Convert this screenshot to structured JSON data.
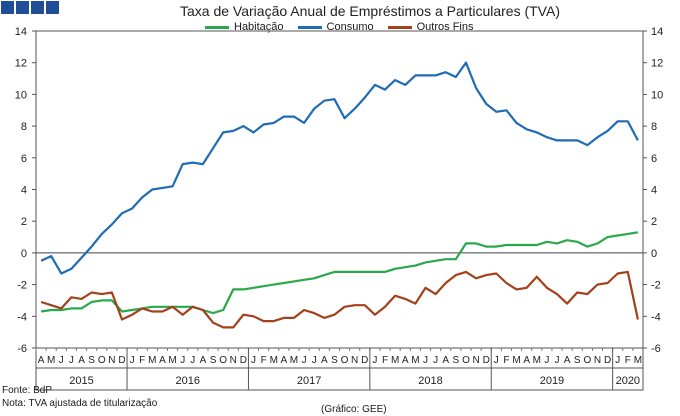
{
  "header": {
    "title": "Taxa de Variação Anual de Empréstimos a Particulares (TVA)",
    "deco_color": "#1f4e96"
  },
  "footer": {
    "source": "Fonte: BdP",
    "note": "Nota: TVA ajustada de titularização",
    "credit": "(Gráfico: GEE)"
  },
  "chart_data": {
    "type": "line",
    "title": "Taxa de Variação Anual de Empréstimos a Particulares (TVA)",
    "ylim": [
      -6,
      14
    ],
    "yticks": [
      -6,
      -4,
      -2,
      0,
      2,
      4,
      6,
      8,
      10,
      12,
      14
    ],
    "grid": false,
    "legend_position": "top",
    "months": [
      "A",
      "M",
      "J",
      "J",
      "A",
      "S",
      "O",
      "N",
      "D",
      "J",
      "F",
      "M",
      "A",
      "M",
      "J",
      "J",
      "A",
      "S",
      "O",
      "N",
      "D",
      "J",
      "F",
      "M",
      "A",
      "M",
      "J",
      "J",
      "A",
      "S",
      "O",
      "N",
      "D",
      "J",
      "F",
      "M",
      "A",
      "M",
      "J",
      "J",
      "A",
      "S",
      "O",
      "N",
      "D",
      "J",
      "F",
      "M",
      "A",
      "M",
      "J",
      "J",
      "A",
      "S",
      "O",
      "N",
      "D",
      "J",
      "F",
      "M"
    ],
    "years": [
      {
        "label": "2015",
        "start": 0,
        "count": 9
      },
      {
        "label": "2016",
        "start": 9,
        "count": 12
      },
      {
        "label": "2017",
        "start": 21,
        "count": 12
      },
      {
        "label": "2018",
        "start": 33,
        "count": 12
      },
      {
        "label": "2019",
        "start": 45,
        "count": 12
      },
      {
        "label": "2020",
        "start": 57,
        "count": 3
      }
    ],
    "series": [
      {
        "name": "Habitação",
        "color": "#2aa84a",
        "values": [
          -3.7,
          -3.6,
          -3.6,
          -3.5,
          -3.5,
          -3.1,
          -3.0,
          -3.0,
          -3.7,
          -3.6,
          -3.5,
          -3.4,
          -3.4,
          -3.4,
          -3.4,
          -3.4,
          -3.6,
          -3.8,
          -3.6,
          -2.3,
          -2.3,
          -2.2,
          -2.1,
          -2.0,
          -1.9,
          -1.8,
          -1.7,
          -1.6,
          -1.4,
          -1.2,
          -1.2,
          -1.2,
          -1.2,
          -1.2,
          -1.2,
          -1.0,
          -0.9,
          -0.8,
          -0.6,
          -0.5,
          -0.4,
          -0.4,
          0.6,
          0.6,
          0.4,
          0.4,
          0.5,
          0.5,
          0.5,
          0.5,
          0.7,
          0.6,
          0.8,
          0.7,
          0.4,
          0.6,
          1.0,
          1.1,
          1.2,
          1.3
        ]
      },
      {
        "name": "Consumo",
        "color": "#1f6bb5",
        "values": [
          -0.5,
          -0.2,
          -1.3,
          -1.0,
          -0.3,
          0.4,
          1.2,
          1.8,
          2.5,
          2.8,
          3.5,
          4.0,
          4.1,
          4.2,
          5.6,
          5.7,
          5.6,
          6.6,
          7.6,
          7.7,
          8.0,
          7.6,
          8.1,
          8.2,
          8.6,
          8.6,
          8.2,
          9.1,
          9.6,
          9.7,
          8.5,
          9.1,
          9.8,
          10.6,
          10.3,
          10.9,
          10.6,
          11.2,
          11.2,
          11.2,
          11.4,
          11.1,
          12.0,
          10.4,
          9.4,
          8.9,
          9.0,
          8.2,
          7.8,
          7.6,
          7.3,
          7.1,
          7.1,
          7.1,
          6.8,
          7.3,
          7.7,
          8.3,
          8.3,
          7.1
        ]
      },
      {
        "name": "Outros Fins",
        "color": "#a2411c",
        "values": [
          -3.1,
          -3.3,
          -3.5,
          -2.8,
          -2.9,
          -2.5,
          -2.6,
          -2.5,
          -4.2,
          -3.9,
          -3.5,
          -3.7,
          -3.7,
          -3.4,
          -3.9,
          -3.4,
          -3.6,
          -4.4,
          -4.7,
          -4.7,
          -3.9,
          -4.0,
          -4.3,
          -4.3,
          -4.1,
          -4.1,
          -3.6,
          -3.8,
          -4.1,
          -3.9,
          -3.4,
          -3.3,
          -3.3,
          -3.9,
          -3.4,
          -2.7,
          -2.9,
          -3.2,
          -2.2,
          -2.6,
          -1.9,
          -1.4,
          -1.2,
          -1.6,
          -1.4,
          -1.3,
          -1.9,
          -2.3,
          -2.2,
          -1.5,
          -2.2,
          -2.6,
          -3.2,
          -2.5,
          -2.6,
          -2.0,
          -1.9,
          -1.3,
          -1.2,
          -4.2
        ]
      }
    ]
  }
}
